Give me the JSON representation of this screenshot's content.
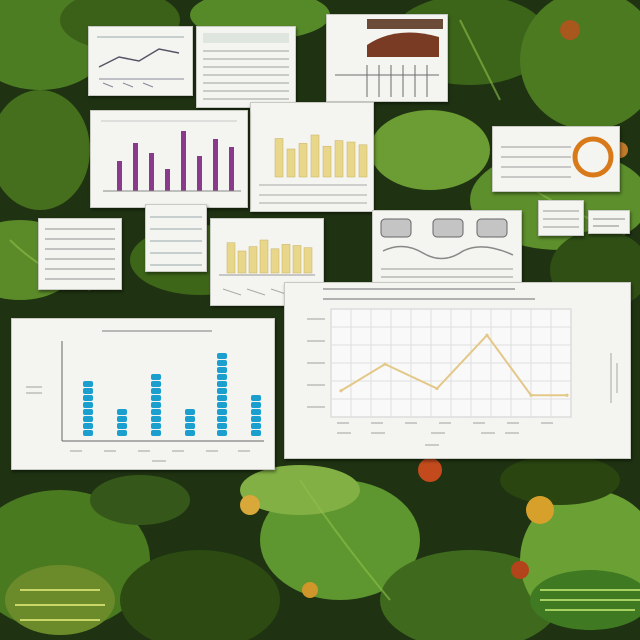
{
  "scene": {
    "description_free": true
  },
  "palette": {
    "leaf_dark": "#1f3312",
    "leaf_mid": "#3f6a1e",
    "leaf_light": "#7fa63a",
    "paper": "#f4f4f1",
    "bar_blue": "#1a9fcf",
    "bar_purple": "#8a3a8a",
    "bar_yellow": "#e8d78a",
    "line_yellow": "#e3c888",
    "grid": "#d8d8d8"
  },
  "bar_chart": {
    "values": [
      40,
      22,
      47,
      18,
      58,
      30
    ],
    "ymax": 70
  },
  "line_chart": {
    "values": [
      20,
      44,
      22,
      70,
      16,
      16
    ],
    "ymax": 90
  },
  "small_bar_chart": {
    "values": [
      30,
      48,
      38,
      22,
      60,
      35,
      52,
      44
    ]
  },
  "yellow_bar_chart": {
    "values": [
      55,
      40,
      48,
      60,
      44,
      52,
      50,
      46
    ]
  }
}
